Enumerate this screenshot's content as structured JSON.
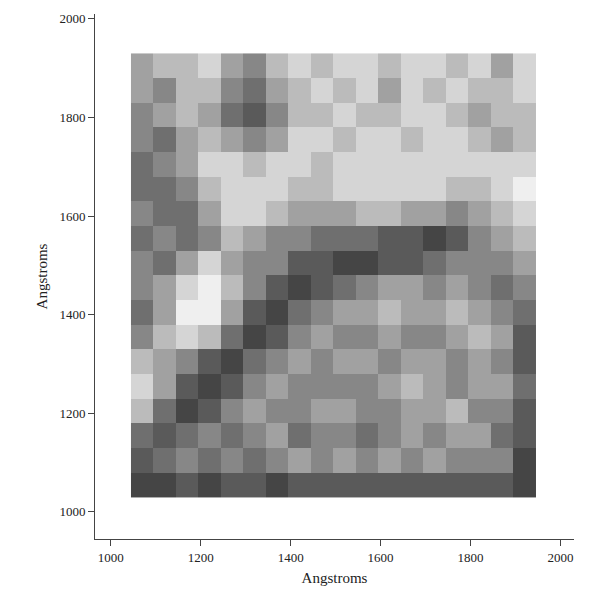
{
  "chart_data": {
    "type": "heatmap",
    "x_label": "Angstroms",
    "y_label": "Angstroms",
    "xlim": [
      965,
      2030
    ],
    "ylim": [
      945,
      2010
    ],
    "xticks": [
      1000,
      1200,
      1400,
      1600,
      1800,
      2000
    ],
    "yticks": [
      1000,
      1200,
      1400,
      1600,
      1800,
      2000
    ],
    "grid": false,
    "x": [
      1070,
      1120,
      1170,
      1220,
      1270,
      1320,
      1370,
      1420,
      1470,
      1520,
      1570,
      1620,
      1670,
      1720,
      1770,
      1820,
      1870,
      1920
    ],
    "y": [
      1055,
      1105,
      1155,
      1205,
      1255,
      1305,
      1355,
      1405,
      1455,
      1505,
      1555,
      1605,
      1655,
      1705,
      1755,
      1805,
      1855,
      1905
    ],
    "zlim": [
      0,
      9
    ],
    "z": [
      [
        2,
        2,
        3,
        2,
        3,
        3,
        2,
        3,
        3,
        3,
        3,
        3,
        3,
        3,
        3,
        3,
        3,
        2
      ],
      [
        3,
        4,
        5,
        4,
        5,
        4,
        5,
        6,
        5,
        6,
        5,
        6,
        5,
        6,
        5,
        5,
        5,
        2
      ],
      [
        4,
        3,
        4,
        5,
        4,
        5,
        6,
        4,
        5,
        5,
        4,
        5,
        6,
        5,
        6,
        6,
        4,
        3
      ],
      [
        7,
        4,
        2,
        3,
        5,
        6,
        5,
        5,
        6,
        6,
        5,
        5,
        6,
        6,
        7,
        5,
        5,
        3
      ],
      [
        8,
        6,
        3,
        2,
        3,
        5,
        6,
        5,
        5,
        5,
        5,
        6,
        7,
        6,
        5,
        6,
        6,
        4
      ],
      [
        7,
        6,
        5,
        3,
        2,
        4,
        5,
        6,
        5,
        6,
        6,
        5,
        6,
        6,
        5,
        6,
        5,
        3
      ],
      [
        5,
        7,
        8,
        7,
        4,
        2,
        3,
        5,
        6,
        5,
        5,
        6,
        5,
        5,
        6,
        7,
        6,
        3
      ],
      [
        4,
        6,
        9,
        9,
        6,
        3,
        2,
        4,
        5,
        6,
        6,
        7,
        6,
        6,
        7,
        6,
        5,
        4
      ],
      [
        5,
        6,
        8,
        9,
        7,
        5,
        3,
        2,
        3,
        4,
        5,
        6,
        6,
        5,
        6,
        5,
        4,
        5
      ],
      [
        5,
        4,
        6,
        8,
        6,
        5,
        5,
        3,
        3,
        2,
        2,
        3,
        3,
        4,
        5,
        5,
        5,
        6
      ],
      [
        4,
        5,
        4,
        5,
        7,
        6,
        5,
        5,
        4,
        4,
        4,
        3,
        3,
        2,
        3,
        5,
        6,
        7
      ],
      [
        5,
        4,
        4,
        6,
        8,
        8,
        7,
        6,
        6,
        6,
        7,
        7,
        6,
        6,
        5,
        6,
        7,
        8
      ],
      [
        4,
        4,
        5,
        7,
        8,
        8,
        8,
        7,
        7,
        8,
        8,
        8,
        8,
        8,
        7,
        7,
        8,
        9
      ],
      [
        4,
        5,
        6,
        8,
        8,
        7,
        8,
        8,
        7,
        8,
        8,
        8,
        8,
        8,
        8,
        8,
        8,
        8
      ],
      [
        5,
        4,
        6,
        7,
        6,
        5,
        6,
        8,
        8,
        7,
        8,
        8,
        7,
        8,
        8,
        7,
        6,
        7
      ],
      [
        5,
        6,
        7,
        6,
        4,
        3,
        5,
        7,
        7,
        8,
        7,
        7,
        8,
        8,
        7,
        6,
        7,
        7
      ],
      [
        6,
        5,
        7,
        7,
        5,
        4,
        6,
        7,
        8,
        7,
        8,
        6,
        8,
        7,
        8,
        7,
        7,
        8
      ],
      [
        6,
        7,
        7,
        8,
        6,
        5,
        7,
        8,
        7,
        8,
        8,
        7,
        8,
        8,
        7,
        8,
        6,
        8
      ]
    ]
  }
}
